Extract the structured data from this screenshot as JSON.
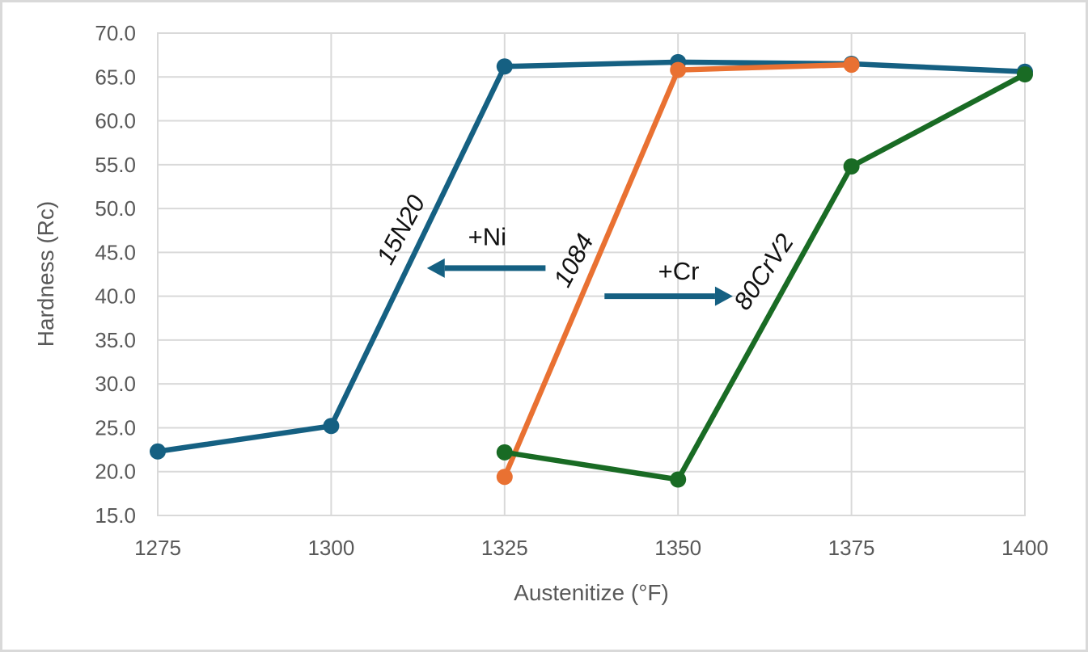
{
  "frame": {
    "background_color": "#FFFFFF",
    "border_color": "#D9D9D9"
  },
  "chart_data": {
    "type": "line",
    "title": "",
    "xlabel": "Austenitize (°F)",
    "ylabel": "Hardness (Rc)",
    "xlim": [
      1275,
      1400
    ],
    "ylim": [
      15.0,
      70.0
    ],
    "x_ticks": [
      1275,
      1300,
      1325,
      1350,
      1375,
      1400
    ],
    "y_ticks": [
      15.0,
      20.0,
      25.0,
      30.0,
      35.0,
      40.0,
      45.0,
      50.0,
      55.0,
      60.0,
      65.0,
      70.0
    ],
    "y_tick_decimals": 1,
    "grid": true,
    "legend_position": "none",
    "colors": {
      "gridline": "#D9D9D9",
      "plot_border": "#D9D9D9",
      "axis_text": "#595959",
      "annotation_text": "#111111",
      "arrow": "#156082"
    },
    "series": [
      {
        "name": "15N20",
        "color": "#156082",
        "x": [
          1275,
          1300,
          1325,
          1350,
          1375,
          1400
        ],
        "y": [
          22.3,
          25.2,
          66.2,
          66.7,
          66.5,
          65.6
        ]
      },
      {
        "name": "1084",
        "color": "#E97132",
        "x": [
          1325,
          1350,
          1375
        ],
        "y": [
          19.4,
          65.8,
          66.4
        ]
      },
      {
        "name": "80CrV2",
        "color": "#196B24",
        "x": [
          1325,
          1350,
          1375,
          1400
        ],
        "y": [
          22.2,
          19.1,
          54.8,
          65.3
        ]
      }
    ],
    "annotations": [
      {
        "text": "15N20",
        "x": 1310.0,
        "y": 47.6,
        "rotate": -62,
        "italic": true
      },
      {
        "text": "+Ni",
        "x": 1322.5,
        "y": 46.8,
        "rotate": 0,
        "italic": false
      },
      {
        "text": "1084",
        "x": 1334.9,
        "y": 44.1,
        "rotate": -62,
        "italic": true
      },
      {
        "text": "+Cr",
        "x": 1350.1,
        "y": 42.9,
        "rotate": 0,
        "italic": false
      },
      {
        "text": "80CrV2",
        "x": 1362.3,
        "y": 42.8,
        "rotate": -56,
        "italic": true
      }
    ],
    "arrows": [
      {
        "x1": 1330.9,
        "y1": 43.2,
        "x2": 1313.8,
        "y2": 43.2
      },
      {
        "x1": 1339.4,
        "y1": 40.0,
        "x2": 1357.9,
        "y2": 40.0
      }
    ]
  }
}
